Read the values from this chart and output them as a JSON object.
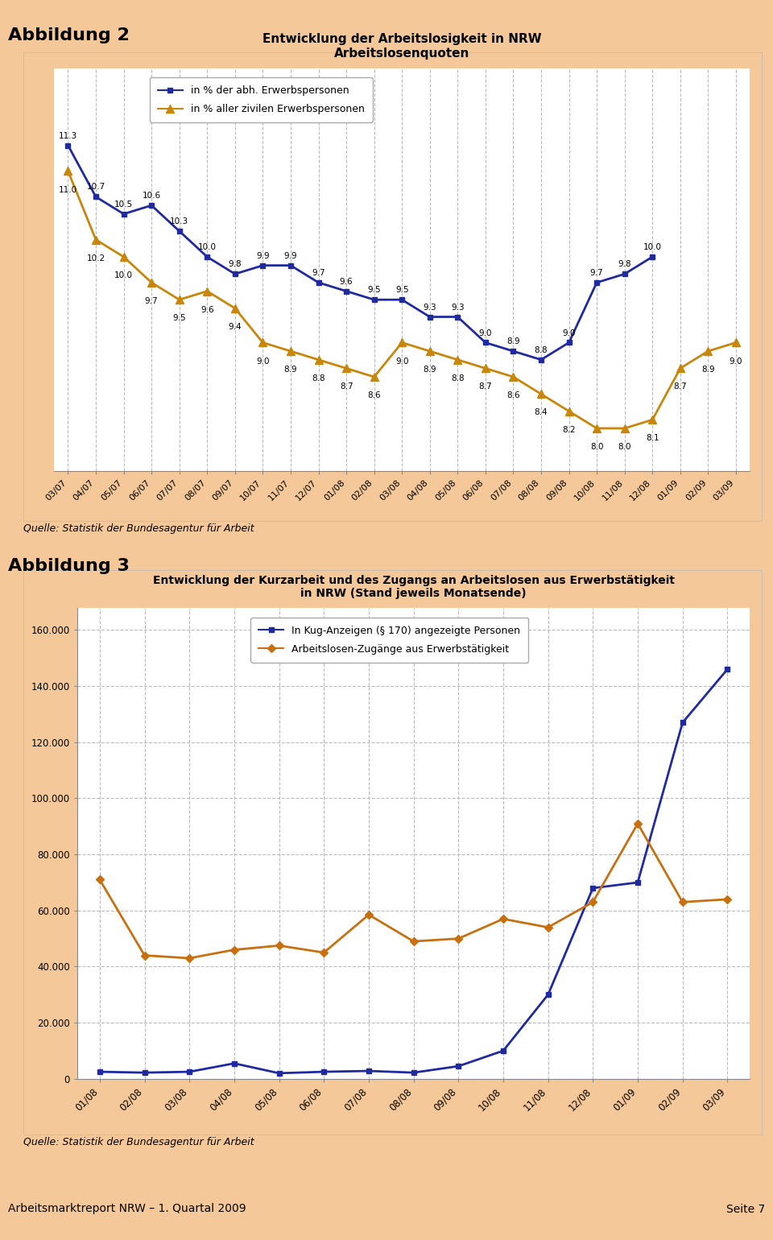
{
  "fig2": {
    "title_line1": "Entwicklung der Arbeitslosigkeit in NRW",
    "title_line2": "Arbeitslosenquoten",
    "heading": "Abbildung 2",
    "x_labels": [
      "03/07",
      "04/07",
      "05/07",
      "06/07",
      "07/07",
      "08/07",
      "09/07",
      "10/07",
      "11/07",
      "12/07",
      "01/08",
      "02/08",
      "03/08",
      "04/08",
      "05/08",
      "06/08",
      "07/08",
      "08/08",
      "09/08",
      "10/08",
      "11/08",
      "12/08",
      "01/09",
      "02/09",
      "03/09"
    ],
    "blue_values": [
      11.3,
      10.7,
      10.5,
      10.6,
      10.3,
      10.0,
      9.8,
      9.9,
      9.9,
      9.7,
      9.6,
      9.5,
      9.5,
      9.3,
      9.3,
      9.0,
      8.9,
      8.8,
      9.0,
      9.7,
      9.8,
      10.0,
      null,
      null,
      null
    ],
    "orange_values": [
      11.0,
      10.2,
      10.0,
      9.7,
      9.5,
      9.6,
      9.4,
      9.0,
      8.9,
      8.8,
      8.7,
      8.6,
      9.0,
      8.9,
      8.8,
      8.7,
      8.6,
      8.4,
      8.2,
      8.0,
      8.0,
      8.1,
      8.7,
      8.9,
      9.0
    ],
    "legend_blue": "in % der abh. Erwerbspersonen",
    "legend_orange": "in % aller zivilen Erwerbspersonen",
    "source": "Quelle: Statistik der Bundesagentur für Arbeit",
    "bg_color": "#F5C89A",
    "plot_bg": "#FFFFFF",
    "blue_color": "#1F2AA0",
    "orange_color": "#C8860A",
    "ylim_min": 7.5,
    "ylim_max": 12.2
  },
  "fig3": {
    "title_line1": "Entwicklung der Kurzarbeit und des Zugangs an Arbeitslosen aus Erwerbstätigkeit",
    "title_line2": "in NRW (Stand jeweils Monatsende)",
    "heading": "Abbildung 3",
    "x_labels": [
      "01/08",
      "02/08",
      "03/08",
      "04/08",
      "05/08",
      "06/08",
      "07/08",
      "08/08",
      "09/08",
      "10/08",
      "11/08",
      "12/08",
      "01/09",
      "02/09",
      "03/09"
    ],
    "blue_values": [
      2500,
      2200,
      2500,
      5500,
      2000,
      2500,
      2800,
      2200,
      4500,
      10000,
      30000,
      68000,
      70000,
      127000,
      146000
    ],
    "orange_values": [
      71000,
      44000,
      43000,
      46000,
      47500,
      45000,
      58500,
      49000,
      50000,
      57000,
      54000,
      63000,
      91000,
      63000,
      64000
    ],
    "legend_blue": "In Kug-Anzeigen (§ 170) angezeigte Personen",
    "legend_orange": "Arbeitslosen-Zugänge aus Erwerbstätigkeit",
    "source": "Quelle: Statistik der Bundesagentur für Arbeit",
    "bg_color": "#F5C89A",
    "plot_bg": "#FFFFFF",
    "blue_color": "#1F2AA0",
    "orange_color": "#C87010",
    "ylim_min": 0,
    "ylim_max": 168000,
    "yticks": [
      0,
      20000,
      40000,
      60000,
      80000,
      100000,
      120000,
      140000,
      160000
    ]
  },
  "footer_left": "Arbeitsmarktreport NRW – 1. Quartal 2009",
  "footer_right": "Seite 7",
  "bg_color": "#F5C89A"
}
